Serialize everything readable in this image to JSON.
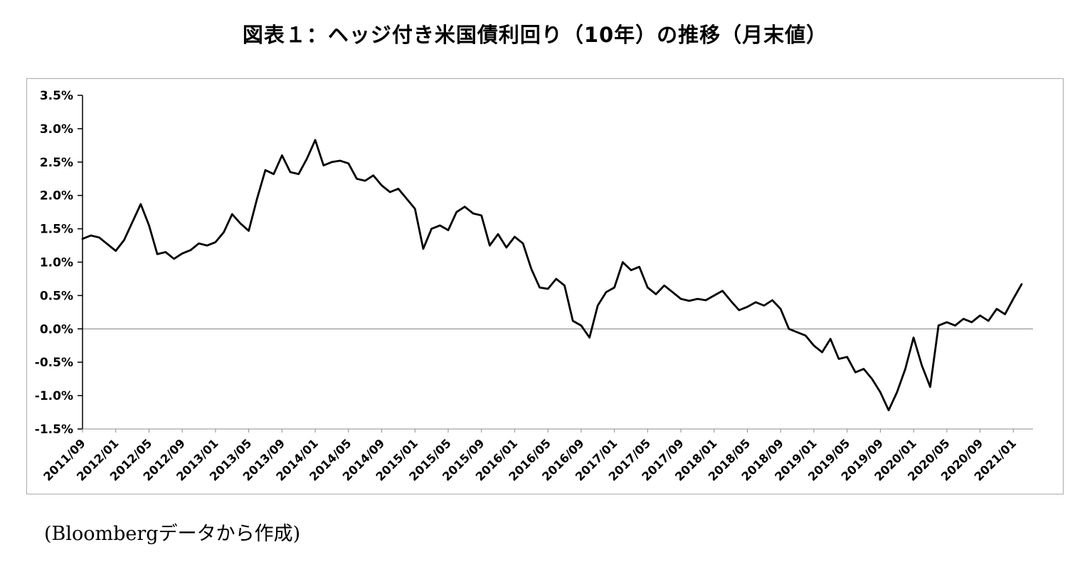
{
  "page": {
    "title": "図表１：ヘッジ付き米国債利回り（10年）の推移（月末値）",
    "source_note": "(Bloombergデータから作成)"
  },
  "chart_data": {
    "type": "line",
    "title": "図表１：ヘッジ付き米国債利回り（10年）の推移（月末値）",
    "xlabel": "",
    "ylabel": "",
    "ylim": [
      -1.5,
      3.5
    ],
    "y_tick_step": 0.5,
    "y_tick_values": [
      3.5,
      3.0,
      2.5,
      2.0,
      1.5,
      1.0,
      0.5,
      0.0,
      -0.5,
      -1.0,
      -1.5
    ],
    "y_tick_labels": [
      "3.5%",
      "3.0%",
      "2.5%",
      "2.0%",
      "1.5%",
      "1.0%",
      "0.5%",
      "0.0%",
      "-0.5%",
      "-1.0%",
      "-1.5%"
    ],
    "x_tick_labels": [
      "2011/09",
      "2012/01",
      "2012/05",
      "2012/09",
      "2013/01",
      "2013/05",
      "2013/09",
      "2014/01",
      "2014/05",
      "2014/09",
      "2015/01",
      "2015/05",
      "2015/09",
      "2016/01",
      "2016/05",
      "2016/09",
      "2017/01",
      "2017/05",
      "2017/09",
      "2018/01",
      "2018/05",
      "2018/09",
      "2019/01",
      "2019/05",
      "2019/09",
      "2020/01",
      "2020/05",
      "2020/09",
      "2021/01"
    ],
    "x_tick_every_n_months": 4,
    "x": [
      "2011/09",
      "2011/10",
      "2011/11",
      "2011/12",
      "2012/01",
      "2012/02",
      "2012/03",
      "2012/04",
      "2012/05",
      "2012/06",
      "2012/07",
      "2012/08",
      "2012/09",
      "2012/10",
      "2012/11",
      "2012/12",
      "2013/01",
      "2013/02",
      "2013/03",
      "2013/04",
      "2013/05",
      "2013/06",
      "2013/07",
      "2013/08",
      "2013/09",
      "2013/10",
      "2013/11",
      "2013/12",
      "2014/01",
      "2014/02",
      "2014/03",
      "2014/04",
      "2014/05",
      "2014/06",
      "2014/07",
      "2014/08",
      "2014/09",
      "2014/10",
      "2014/11",
      "2014/12",
      "2015/01",
      "2015/02",
      "2015/03",
      "2015/04",
      "2015/05",
      "2015/06",
      "2015/07",
      "2015/08",
      "2015/09",
      "2015/10",
      "2015/11",
      "2015/12",
      "2016/01",
      "2016/02",
      "2016/03",
      "2016/04",
      "2016/05",
      "2016/06",
      "2016/07",
      "2016/08",
      "2016/09",
      "2016/10",
      "2016/11",
      "2016/12",
      "2017/01",
      "2017/02",
      "2017/03",
      "2017/04",
      "2017/05",
      "2017/06",
      "2017/07",
      "2017/08",
      "2017/09",
      "2017/10",
      "2017/11",
      "2017/12",
      "2018/01",
      "2018/02",
      "2018/03",
      "2018/04",
      "2018/05",
      "2018/06",
      "2018/07",
      "2018/08",
      "2018/09",
      "2018/10",
      "2018/11",
      "2018/12",
      "2019/01",
      "2019/02",
      "2019/03",
      "2019/04",
      "2019/05",
      "2019/06",
      "2019/07",
      "2019/08",
      "2019/09",
      "2019/10",
      "2019/11",
      "2019/12",
      "2020/01",
      "2020/02",
      "2020/03",
      "2020/04",
      "2020/05",
      "2020/06",
      "2020/07",
      "2020/08",
      "2020/09",
      "2020/10",
      "2020/11",
      "2020/12",
      "2021/01",
      "2021/02"
    ],
    "series": [
      {
        "name": "ヘッジ付き米国債利回り（10年）",
        "values": [
          1.35,
          1.4,
          1.37,
          1.27,
          1.17,
          1.33,
          1.6,
          1.87,
          1.55,
          1.12,
          1.15,
          1.05,
          1.13,
          1.18,
          1.28,
          1.25,
          1.3,
          1.45,
          1.72,
          1.58,
          1.47,
          1.95,
          2.38,
          2.32,
          2.6,
          2.35,
          2.32,
          2.55,
          2.83,
          2.45,
          2.5,
          2.52,
          2.48,
          2.25,
          2.22,
          2.3,
          2.15,
          2.05,
          2.1,
          1.95,
          1.8,
          1.2,
          1.5,
          1.55,
          1.48,
          1.75,
          1.83,
          1.73,
          1.7,
          1.25,
          1.42,
          1.22,
          1.38,
          1.28,
          0.9,
          0.62,
          0.6,
          0.75,
          0.65,
          0.12,
          0.05,
          -0.13,
          0.35,
          0.55,
          0.62,
          1.0,
          0.88,
          0.93,
          0.62,
          0.52,
          0.65,
          0.55,
          0.45,
          0.42,
          0.45,
          0.43,
          0.5,
          0.57,
          0.42,
          0.28,
          0.33,
          0.4,
          0.35,
          0.43,
          0.3,
          0.0,
          -0.05,
          -0.1,
          -0.25,
          -0.35,
          -0.15,
          -0.45,
          -0.42,
          -0.65,
          -0.6,
          -0.75,
          -0.95,
          -1.22,
          -0.95,
          -0.6,
          -0.13,
          -0.55,
          -0.87,
          0.05,
          0.1,
          0.05,
          0.15,
          0.1,
          0.2,
          0.12,
          0.3,
          0.22,
          0.45,
          0.67
        ]
      }
    ],
    "legend": "none",
    "grid": "zero-line-only",
    "line_color": "#000000",
    "zero_line_color": "#8c8c8c",
    "axis_color": "#000000"
  }
}
